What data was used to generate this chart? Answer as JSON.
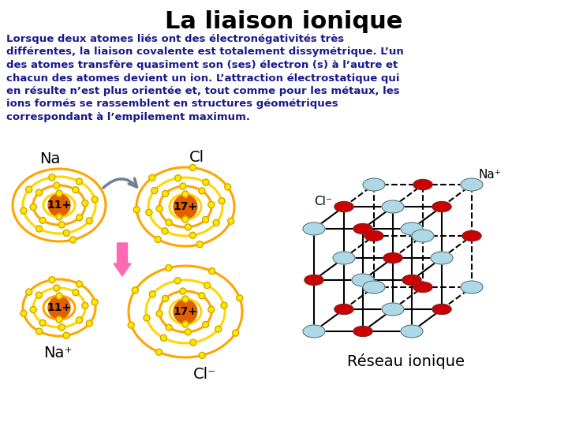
{
  "title": "La liaison ionique",
  "title_fontsize": 22,
  "title_color": "#000000",
  "body_text": "Lorsque deux atomes liés ont des électronégativités très\ndifférentes, la liaison covalente est totalement dissymétrique. L’un\ndes atomes transfère quasiment son (ses) électron (s) à l’autre et\nchacun des atomes devient un ion. L’attraction électrostatique qui\nen résulte n’est plus orientée et, tout comme pour les métaux, les\nions formés se rassemblent en structures géométriques\ncorrespondant à l’empilement maximum.",
  "body_fontsize": 9.5,
  "body_color": "#1a1a8c",
  "background_color": "#FFFFFF",
  "na_nucleus_label": "11+",
  "cl_nucleus_label": "17+",
  "nucleus_color": "#E06000",
  "ring_colors": [
    "#FFA500",
    "#FFD700",
    "#FFA500",
    "#FFD700"
  ],
  "electron_color": "#FFE800",
  "electron_border": "#CC9900",
  "na_color": "#ADD8E6",
  "cl_color": "#CC0000",
  "line_color": "#000000",
  "reseau_label": "Réseau ionique",
  "reseau_fontsize": 14
}
